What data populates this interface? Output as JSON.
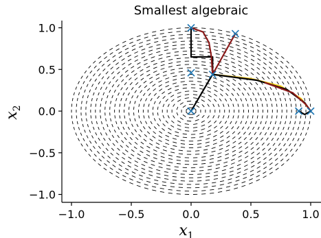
{
  "chart_data": {
    "type": "scatter",
    "title": "Smallest algebraic",
    "xlabel": "x",
    "xlabel_sub": "1",
    "ylabel": "x",
    "ylabel_sub": "2",
    "xlim": [
      -1.1,
      1.1
    ],
    "ylim": [
      -1.1,
      1.1
    ],
    "xticks": [
      -1.0,
      -0.5,
      0.0,
      0.5,
      1.0
    ],
    "xtick_labels": [
      "−1.0",
      "−0.5",
      "0.0",
      "0.5",
      "1.0"
    ],
    "yticks": [
      -1.0,
      -0.5,
      0.0,
      0.5,
      1.0
    ],
    "ytick_labels": [
      "−1.0",
      "−0.5",
      "0.0",
      "0.5",
      "1.0"
    ],
    "grid": false,
    "vector_field": {
      "domain": "unit-disk",
      "style": "black-dashes",
      "pattern": "concentric-circles"
    },
    "markers": {
      "style": "x",
      "color": "#1f77b4",
      "points": [
        {
          "x": 0.0,
          "y": 0.0
        },
        {
          "x": 0.0,
          "y": 1.0
        },
        {
          "x": 0.37,
          "y": 0.93
        },
        {
          "x": 0.0,
          "y": 0.46
        },
        {
          "x": 0.18,
          "y": 0.44
        },
        {
          "x": 0.9,
          "y": 0.0
        },
        {
          "x": 1.0,
          "y": 0.0
        }
      ]
    },
    "trajectories": [
      {
        "color": "#000000",
        "points": [
          [
            0.0,
            1.0
          ],
          [
            0.0,
            0.65
          ],
          [
            0.18,
            0.65
          ],
          [
            0.18,
            0.44
          ]
        ]
      },
      {
        "color": "#8b1a1a",
        "points": [
          [
            0.0,
            1.0
          ],
          [
            0.1,
            0.95
          ],
          [
            0.15,
            0.82
          ],
          [
            0.17,
            0.65
          ],
          [
            0.18,
            0.44
          ]
        ]
      },
      {
        "color": "#000000",
        "points": [
          [
            0.0,
            0.0
          ],
          [
            0.18,
            0.44
          ]
        ]
      },
      {
        "color": "#8b1a1a",
        "points": [
          [
            0.18,
            0.44
          ],
          [
            0.37,
            0.93
          ]
        ]
      },
      {
        "color": "#ffd21f",
        "points": [
          [
            0.18,
            0.44
          ],
          [
            0.5,
            0.39
          ],
          [
            0.75,
            0.3
          ],
          [
            0.92,
            0.15
          ],
          [
            1.0,
            0.0
          ]
        ]
      },
      {
        "color": "#000000",
        "points": [
          [
            0.18,
            0.44
          ],
          [
            0.55,
            0.37
          ],
          [
            0.8,
            0.26
          ],
          [
            0.95,
            0.1
          ],
          [
            1.0,
            0.0
          ]
        ]
      },
      {
        "color": "#8b1a1a",
        "points": [
          [
            0.62,
            0.34
          ],
          [
            0.85,
            0.22
          ],
          [
            0.96,
            0.08
          ],
          [
            1.0,
            0.0
          ]
        ]
      },
      {
        "color": "#000000",
        "points": [
          [
            0.9,
            0.0
          ],
          [
            0.95,
            -0.04
          ],
          [
            1.0,
            0.0
          ]
        ]
      }
    ]
  }
}
